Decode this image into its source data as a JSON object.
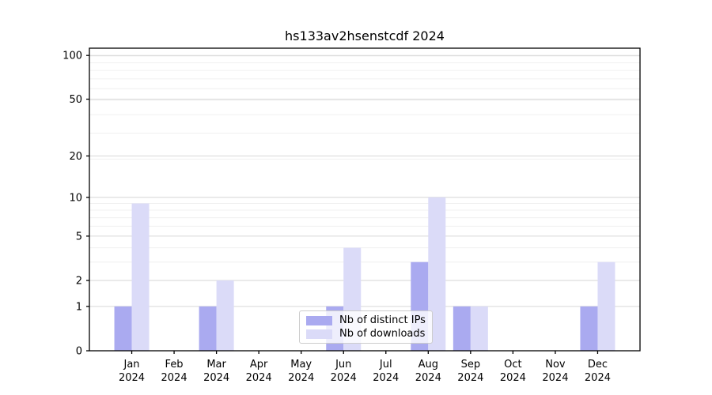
{
  "chart_data": {
    "type": "bar",
    "title": "hs133av2hsenstcdf 2024",
    "months": [
      "Jan",
      "Feb",
      "Mar",
      "Apr",
      "May",
      "Jun",
      "Jul",
      "Aug",
      "Sep",
      "Oct",
      "Nov",
      "Dec"
    ],
    "year": "2024",
    "series": [
      {
        "name": "Nb of distinct IPs",
        "color": "#aaaaf0",
        "values": [
          1,
          0,
          1,
          0,
          0,
          1,
          0,
          3,
          1,
          0,
          0,
          1
        ]
      },
      {
        "name": "Nb of downloads",
        "color": "#dbdbf8",
        "values": [
          9,
          0,
          2,
          0,
          0,
          4,
          0,
          10,
          1,
          0,
          0,
          3
        ]
      }
    ],
    "xlabel": "",
    "ylabel": "",
    "ytick_values": [
      0,
      1,
      2,
      5,
      10,
      20,
      50,
      100
    ],
    "yscale": "log10(value+1)",
    "ylim": [
      0,
      113
    ],
    "grid": "horizontal; major lines at labeled ticks, faint log minor lines",
    "minor_grid_values": [
      3,
      4,
      6,
      7,
      8,
      9,
      19,
      29,
      39,
      49,
      59,
      69,
      79,
      89,
      99
    ],
    "legend_position": "lower center inside plot"
  },
  "colors": {
    "background": "#ffffff",
    "axis": "#000000",
    "grid_major": "#d6d6d6",
    "grid_minor": "#f0f0f0",
    "tick_label": "#000000",
    "legend_border": "#cccccc"
  }
}
